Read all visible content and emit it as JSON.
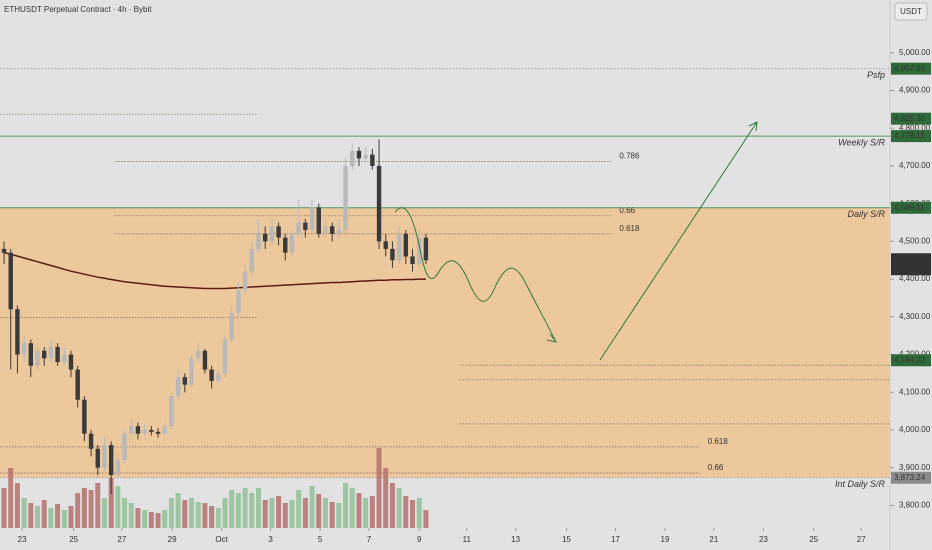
{
  "chart_data": {
    "type": "candlestick",
    "title": "ETHUSDT Perpetual Contract · 4h · Bybit",
    "currency": "USDT",
    "xlim": [
      -0.6,
      132.3
    ],
    "xticks": [
      {
        "value": 2.7,
        "label": "23"
      },
      {
        "value": 10.4,
        "label": "25"
      },
      {
        "value": 17.6,
        "label": "27"
      },
      {
        "value": 25.1,
        "label": "29"
      },
      {
        "value": 32.5,
        "label": "Oct"
      },
      {
        "value": 39.8,
        "label": "3"
      },
      {
        "value": 47.2,
        "label": "5"
      },
      {
        "value": 54.5,
        "label": "7"
      },
      {
        "value": 62,
        "label": "9"
      },
      {
        "value": 69.1,
        "label": "11"
      },
      {
        "value": 76.4,
        "label": "13"
      },
      {
        "value": 84,
        "label": "15"
      },
      {
        "value": 91.3,
        "label": "17"
      },
      {
        "value": 98.7,
        "label": "19"
      },
      {
        "value": 106,
        "label": "21"
      },
      {
        "value": 113.4,
        "label": "23"
      },
      {
        "value": 120.9,
        "label": "25"
      },
      {
        "value": 128,
        "label": "27"
      }
    ],
    "ylim": [
      3740,
      5140
    ],
    "yticks": [
      {
        "value": 3800,
        "label": "3,800.00"
      },
      {
        "value": 3900,
        "label": "3,900.00"
      },
      {
        "value": 4000,
        "label": "4,000.00"
      },
      {
        "value": 4100,
        "label": "4,100.00"
      },
      {
        "value": 4200,
        "label": "4,200.00"
      },
      {
        "value": 4300,
        "label": "4,300.00"
      },
      {
        "value": 4400,
        "label": "4,400.00"
      },
      {
        "value": 4500,
        "label": "4,500.00"
      },
      {
        "value": 4600,
        "label": "4,600.00"
      },
      {
        "value": 4700,
        "label": "4,700.00"
      },
      {
        "value": 4800,
        "label": "4,800.00"
      },
      {
        "value": 4900,
        "label": "4,900.00"
      },
      {
        "value": 5000,
        "label": "5,000.00"
      }
    ],
    "up_color": "#b9b9b9",
    "down_color": "#3a3a3a",
    "volume_up_color": "#8fbf95",
    "volume_down_color": "#b4706c",
    "ma_color": "#5a1e12",
    "zone": {
      "from": 3873.24,
      "to": 4589.11,
      "color": "#ecc89c"
    },
    "open": [
      4480,
      4470,
      4320,
      4200,
      4230,
      4170,
      4210,
      4190,
      4220,
      4180,
      4200,
      4160,
      4080,
      3990,
      3950,
      3900,
      3960,
      3880,
      3920,
      3990,
      4010,
      3990,
      4000,
      3995,
      3990,
      4010,
      4090,
      4140,
      4120,
      4190,
      4210,
      4160,
      4130,
      4150,
      4240,
      4310,
      4370,
      4420,
      4480,
      4520,
      4500,
      4540,
      4510,
      4470,
      4520,
      4550,
      4530,
      4590,
      4520,
      4540,
      4520,
      4530,
      4700,
      4740,
      4720,
      4730,
      4700,
      4500,
      4480,
      4450,
      4520,
      4460,
      4440,
      4510
    ],
    "high": [
      4500,
      4480,
      4330,
      4250,
      4240,
      4230,
      4220,
      4240,
      4230,
      4220,
      4210,
      4170,
      4090,
      4000,
      3960,
      3980,
      3970,
      3940,
      4000,
      4030,
      4020,
      4015,
      4010,
      4005,
      4020,
      4100,
      4160,
      4150,
      4200,
      4230,
      4215,
      4170,
      4160,
      4250,
      4330,
      4390,
      4440,
      4500,
      4560,
      4540,
      4560,
      4550,
      4520,
      4530,
      4610,
      4560,
      4610,
      4600,
      4560,
      4550,
      4560,
      4720,
      4760,
      4750,
      4750,
      4745,
      4770,
      4520,
      4500,
      4540,
      4530,
      4480,
      4530,
      4520
    ],
    "low": [
      4440,
      4160,
      4150,
      4180,
      4140,
      4160,
      4170,
      4180,
      4170,
      4170,
      4140,
      4060,
      3970,
      3930,
      3880,
      3890,
      3830,
      3870,
      3910,
      3980,
      3975,
      3985,
      3985,
      3980,
      3985,
      4000,
      4080,
      4100,
      4110,
      4180,
      4150,
      4110,
      4120,
      4140,
      4230,
      4300,
      4360,
      4410,
      4470,
      4480,
      4490,
      4490,
      4450,
      4460,
      4510,
      4510,
      4520,
      4510,
      4510,
      4500,
      4510,
      4520,
      4690,
      4700,
      4710,
      4690,
      4480,
      4460,
      4430,
      4440,
      4440,
      4420,
      4430,
      4440
    ],
    "close": [
      4470,
      4320,
      4200,
      4230,
      4170,
      4210,
      4190,
      4220,
      4180,
      4200,
      4160,
      4080,
      3990,
      3950,
      3900,
      3960,
      3880,
      3920,
      3990,
      4010,
      3990,
      4000,
      3995,
      3990,
      4010,
      4090,
      4140,
      4120,
      4190,
      4210,
      4160,
      4130,
      4150,
      4240,
      4310,
      4370,
      4420,
      4480,
      4520,
      4500,
      4540,
      4510,
      4470,
      4520,
      4550,
      4530,
      4590,
      4520,
      4540,
      4520,
      4530,
      4700,
      4740,
      4720,
      4730,
      4700,
      4500,
      4480,
      4450,
      4520,
      4460,
      4440,
      4510,
      4449.95
    ],
    "volume": [
      40,
      60,
      45,
      30,
      25,
      22,
      28,
      20,
      24,
      18,
      22,
      35,
      40,
      38,
      45,
      30,
      50,
      42,
      30,
      25,
      20,
      18,
      16,
      15,
      18,
      30,
      35,
      28,
      30,
      26,
      25,
      22,
      20,
      30,
      38,
      35,
      40,
      35,
      40,
      28,
      30,
      32,
      25,
      28,
      38,
      30,
      42,
      34,
      30,
      26,
      25,
      45,
      40,
      35,
      30,
      32,
      80,
      60,
      45,
      40,
      32,
      28,
      30,
      18
    ],
    "ma": [
      4470,
      4466,
      4461,
      4456,
      4451,
      4446,
      4441,
      4436,
      4431,
      4426,
      4421,
      4417,
      4413,
      4409,
      4405,
      4402,
      4399,
      4396,
      4393,
      4391,
      4389,
      4387,
      4385,
      4383,
      4381,
      4380,
      4379,
      4378,
      4377,
      4376,
      4375,
      4375,
      4375,
      4375,
      4376,
      4377,
      4378,
      4379,
      4380,
      4381,
      4382,
      4383,
      4384,
      4385,
      4386,
      4387,
      4388,
      4389,
      4390,
      4391,
      4391,
      4392,
      4393,
      4394,
      4395,
      4396,
      4397,
      4397,
      4398,
      4398,
      4399,
      4399,
      4400,
      4400
    ],
    "levels": [
      {
        "label": "Psfp",
        "value": 4957.96,
        "value_label": "4,957.96",
        "color": "#2f6b3a",
        "line": "#a8a8a8"
      },
      {
        "label": "Weekly S/R",
        "value": 4779.11,
        "value_label": "4,779.11",
        "color": "#2f6b3a",
        "line": "#4d9a5c"
      },
      {
        "label": "Daily S/R",
        "value": 4589.11,
        "value_label": "4,589.11",
        "color": "#2f6b3a",
        "line": "#4d9a5c"
      },
      {
        "label": "Int Daily S/R",
        "value": 3873.24,
        "value_label": "3,873.24",
        "color": "#8a8a8a",
        "line": "#a8a8a8"
      }
    ],
    "price_tags": [
      {
        "value": 4825.3,
        "value_label": "4,825.30",
        "color": "#2f6b3a"
      },
      {
        "value": 4184.72,
        "value_label": "4,184.72",
        "color": "#2f6b3a"
      }
    ],
    "last_price": {
      "value": 4449.95,
      "value_label": "4,449.95",
      "countdown": "01:37:21"
    },
    "segments": [
      {
        "value": 4837,
        "from": -0.6,
        "to": 37.9
      },
      {
        "value": 4712,
        "from": 16.6,
        "to": 90.7,
        "label": "0.786"
      },
      {
        "value": 4568,
        "from": 16.6,
        "to": 90.7,
        "label": "0.66"
      },
      {
        "value": 4520,
        "from": 16.6,
        "to": 90.7,
        "label": "0.618"
      },
      {
        "value": 4298,
        "from": -0.6,
        "to": 37.9
      },
      {
        "value": 4172,
        "from": 68,
        "to": 132.3
      },
      {
        "value": 4133,
        "from": 68,
        "to": 132.3
      },
      {
        "value": 4016,
        "from": 68,
        "to": 132.3
      },
      {
        "value": 3955,
        "from": -0.6,
        "to": 103.9,
        "label": "0.618"
      },
      {
        "value": 3886,
        "from": -0.6,
        "to": 103.9,
        "label": "0.66"
      }
    ]
  }
}
